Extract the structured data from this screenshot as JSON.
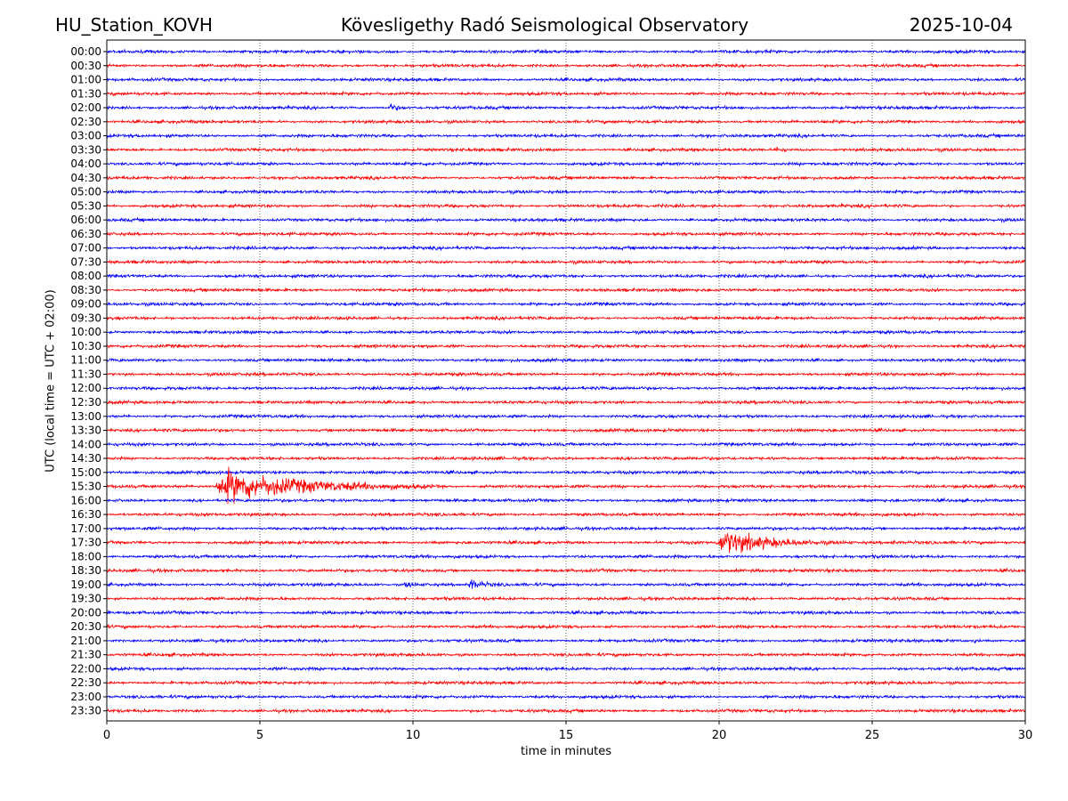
{
  "header": {
    "station": "HU_Station_KOVH",
    "observatory": "Kövesligethy Radó Seismological Observatory",
    "date": "2025-10-04"
  },
  "chart_data": {
    "type": "line",
    "title": "Kövesligethy Radó Seismological Observatory",
    "xlabel": "time in minutes",
    "ylabel": "UTC (local time = UTC + 02:00)",
    "xlim": [
      0,
      30
    ],
    "x_ticks": [
      0,
      5,
      10,
      15,
      20,
      25,
      30
    ],
    "grid": "vertical dotted lines at each x tick",
    "row_labels": [
      "00:00",
      "00:30",
      "01:00",
      "01:30",
      "02:00",
      "02:30",
      "03:00",
      "03:30",
      "04:00",
      "04:30",
      "05:00",
      "05:30",
      "06:00",
      "06:30",
      "07:00",
      "07:30",
      "08:00",
      "08:30",
      "09:00",
      "09:30",
      "10:00",
      "10:30",
      "11:00",
      "11:30",
      "12:00",
      "12:30",
      "13:00",
      "13:30",
      "14:00",
      "14:30",
      "15:00",
      "15:30",
      "16:00",
      "16:30",
      "17:00",
      "17:30",
      "18:00",
      "18:30",
      "19:00",
      "19:30",
      "20:00",
      "20:30",
      "21:00",
      "21:30",
      "22:00",
      "22:30",
      "23:00",
      "23:30"
    ],
    "row_colors": [
      "#0000ff",
      "#ff0000"
    ],
    "noise_amplitude": 0.13,
    "events": [
      {
        "row": "02:00",
        "start_min": 9.2,
        "duration_min": 0.7,
        "amplitude": 0.55
      },
      {
        "row": "03:30",
        "start_min": 21.8,
        "duration_min": 0.9,
        "amplitude": 0.28
      },
      {
        "row": "15:30",
        "start_min": 3.5,
        "duration_min": 7.5,
        "amplitude": 2.2
      },
      {
        "row": "17:30",
        "start_min": 19.9,
        "duration_min": 4.5,
        "amplitude": 1.6
      },
      {
        "row": "17:30",
        "start_min": 25.6,
        "duration_min": 0.3,
        "amplitude": 0.3
      },
      {
        "row": "19:00",
        "start_min": 9.7,
        "duration_min": 1.2,
        "amplitude": 0.45
      },
      {
        "row": "19:00",
        "start_min": 11.8,
        "duration_min": 1.0,
        "amplitude": 0.75
      },
      {
        "row": "21:00",
        "start_min": 28.3,
        "duration_min": 0.3,
        "amplitude": 0.35
      }
    ]
  }
}
